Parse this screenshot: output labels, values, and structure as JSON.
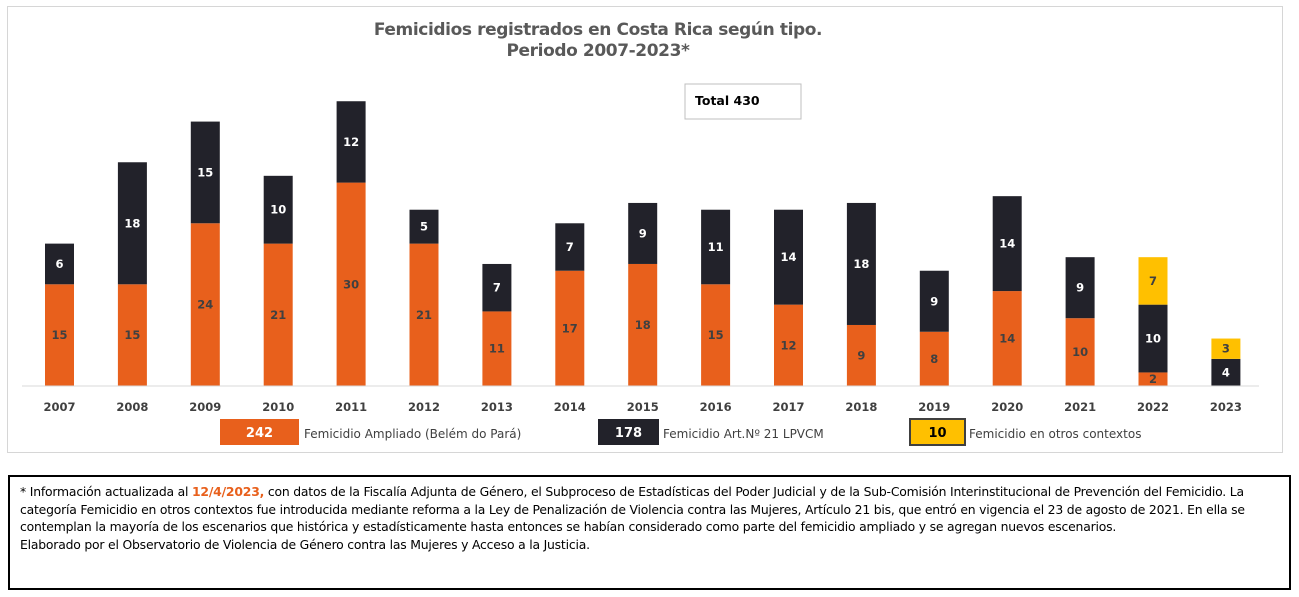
{
  "chart_data": {
    "type": "bar",
    "stacked": true,
    "title": "Femicidios registrados en Costa Rica según tipo.",
    "subtitle": "Periodo 2007-2023*",
    "total_label": "Total 430",
    "categories": [
      "2007",
      "2008",
      "2009",
      "2010",
      "2011",
      "2012",
      "2013",
      "2014",
      "2015",
      "2016",
      "2017",
      "2018",
      "2019",
      "2020",
      "2021",
      "2022",
      "2023"
    ],
    "series": [
      {
        "name": "Femicidio Ampliado (Belém do Pará)",
        "color": "#e8601c",
        "label_color": "#404040",
        "legend_count": "242",
        "values": [
          15,
          15,
          24,
          21,
          30,
          21,
          11,
          17,
          18,
          15,
          12,
          9,
          8,
          14,
          10,
          2,
          null
        ]
      },
      {
        "name": "Femicidio Art.Nº 21 LPVCM",
        "color": "#22222a",
        "label_color": "#ffffff",
        "legend_count": "178",
        "values": [
          6,
          18,
          15,
          10,
          12,
          5,
          7,
          7,
          9,
          11,
          14,
          18,
          9,
          14,
          9,
          10,
          4
        ]
      },
      {
        "name": "Femicidio en otros contextos",
        "color": "#ffc000",
        "label_color": "#404040",
        "legend_count": "10",
        "values": [
          null,
          null,
          null,
          null,
          null,
          null,
          null,
          null,
          null,
          null,
          null,
          null,
          null,
          null,
          null,
          7,
          3
        ]
      }
    ],
    "legend_position": "bottom",
    "grid": false
  },
  "note": {
    "lead": "* Información actualizada al ",
    "date": "12/4/2023,",
    "rest": " con datos de la Fiscalía Adjunta de Género, el Subproceso de Estadísticas del Poder Judicial y de la Sub-Comisión Interinstitucional de Prevención del Femicidio.  La categoría Femicidio en otros contextos fue introducida mediante reforma a la Ley de Penalización de Violencia contra las Mujeres, Artículo 21 bis, que entró en vigencia el 23 de agosto de 2021. En ella se contemplan la mayoría de los escenarios que histórica y estadísticamente hasta entonces se habían considerado como parte del femicidio ampliado y se agregan nuevos escenarios.",
    "credit": "Elaborado por el Observatorio de Violencia de Género contra las Mujeres y Acceso a la Justicia."
  }
}
